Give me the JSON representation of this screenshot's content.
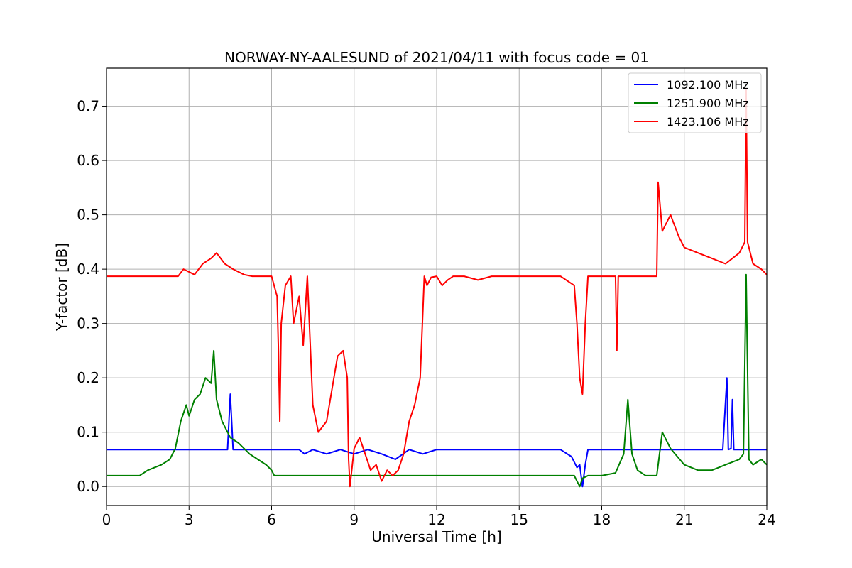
{
  "chart_data": {
    "type": "line",
    "title": "NORWAY-NY-AALESUND of 2021/04/11 with focus code = 01",
    "xlabel": "Universal Time [h]",
    "ylabel": "Y-factor [dB]",
    "xlim": [
      0,
      24
    ],
    "ylim": [
      -0.035,
      0.77
    ],
    "xticks": [
      "0",
      "3",
      "6",
      "9",
      "12",
      "15",
      "18",
      "21",
      "24"
    ],
    "yticks": [
      "0.0",
      "0.1",
      "0.2",
      "0.3",
      "0.4",
      "0.5",
      "0.6",
      "0.7"
    ],
    "grid": true,
    "legend_position": "top-right",
    "series": [
      {
        "name": "1092.100 MHz",
        "color": "#0000ff",
        "x": [
          0,
          4.4,
          4.5,
          4.6,
          7.0,
          7.2,
          7.5,
          8.0,
          8.5,
          9.0,
          9.5,
          10.0,
          10.5,
          11.0,
          11.5,
          12.0,
          14.0,
          16.5,
          16.9,
          17.0,
          17.1,
          17.2,
          17.3,
          17.4,
          17.5,
          18.0,
          22.4,
          22.55,
          22.6,
          22.7,
          22.75,
          22.8,
          24
        ],
        "y": [
          0.068,
          0.068,
          0.17,
          0.068,
          0.068,
          0.06,
          0.068,
          0.06,
          0.068,
          0.06,
          0.068,
          0.06,
          0.05,
          0.068,
          0.06,
          0.068,
          0.068,
          0.068,
          0.055,
          0.045,
          0.035,
          0.04,
          0.0,
          0.04,
          0.068,
          0.068,
          0.068,
          0.2,
          0.068,
          0.07,
          0.16,
          0.068,
          0.068
        ]
      },
      {
        "name": "1251.900 MHz",
        "color": "#008000",
        "x": [
          0,
          1.2,
          1.5,
          2.0,
          2.3,
          2.5,
          2.7,
          2.9,
          3.0,
          3.2,
          3.4,
          3.6,
          3.8,
          3.9,
          4.0,
          4.2,
          4.5,
          4.8,
          5.0,
          5.2,
          5.5,
          5.8,
          6.0,
          6.1,
          17.0,
          17.1,
          17.2,
          17.3,
          17.5,
          18.0,
          18.5,
          18.8,
          18.95,
          19.1,
          19.3,
          19.6,
          20.0,
          20.2,
          20.5,
          21.0,
          21.5,
          22.0,
          22.5,
          23.0,
          23.15,
          23.25,
          23.35,
          23.5,
          23.8,
          24.0
        ],
        "y": [
          0.02,
          0.02,
          0.03,
          0.04,
          0.05,
          0.07,
          0.12,
          0.15,
          0.13,
          0.16,
          0.17,
          0.2,
          0.19,
          0.25,
          0.16,
          0.12,
          0.09,
          0.08,
          0.07,
          0.06,
          0.05,
          0.04,
          0.03,
          0.02,
          0.02,
          0.01,
          0.0,
          0.015,
          0.02,
          0.02,
          0.025,
          0.06,
          0.16,
          0.06,
          0.03,
          0.02,
          0.02,
          0.1,
          0.07,
          0.04,
          0.03,
          0.03,
          0.04,
          0.05,
          0.06,
          0.39,
          0.05,
          0.04,
          0.05,
          0.04
        ]
      },
      {
        "name": "1423.106 MHz",
        "color": "#ff0000",
        "x": [
          0,
          2.6,
          2.8,
          3.2,
          3.5,
          3.8,
          4.0,
          4.3,
          4.6,
          5.0,
          5.3,
          5.5,
          6.0,
          6.2,
          6.25,
          6.3,
          6.35,
          6.5,
          6.7,
          6.8,
          7.0,
          7.15,
          7.3,
          7.5,
          7.7,
          8.0,
          8.2,
          8.4,
          8.6,
          8.75,
          8.8,
          8.85,
          9.0,
          9.2,
          9.4,
          9.6,
          9.8,
          10.0,
          10.2,
          10.4,
          10.6,
          10.8,
          11.0,
          11.2,
          11.4,
          11.55,
          11.65,
          11.8,
          12.0,
          12.2,
          12.4,
          12.6,
          13.0,
          13.5,
          14.0,
          16.5,
          17.0,
          17.1,
          17.2,
          17.3,
          17.4,
          17.5,
          18.0,
          18.5,
          18.55,
          18.6,
          19.0,
          20.0,
          20.05,
          20.2,
          20.5,
          20.8,
          21.0,
          21.5,
          22.0,
          22.5,
          23.0,
          23.2,
          23.25,
          23.3,
          23.5,
          23.8,
          24.0
        ],
        "y": [
          0.387,
          0.387,
          0.4,
          0.39,
          0.41,
          0.42,
          0.43,
          0.41,
          0.4,
          0.39,
          0.387,
          0.387,
          0.387,
          0.35,
          0.25,
          0.12,
          0.3,
          0.37,
          0.387,
          0.3,
          0.35,
          0.26,
          0.387,
          0.15,
          0.1,
          0.12,
          0.18,
          0.24,
          0.25,
          0.2,
          0.05,
          0.0,
          0.07,
          0.09,
          0.06,
          0.03,
          0.04,
          0.01,
          0.03,
          0.02,
          0.03,
          0.06,
          0.12,
          0.15,
          0.2,
          0.387,
          0.37,
          0.385,
          0.387,
          0.37,
          0.38,
          0.387,
          0.387,
          0.38,
          0.387,
          0.387,
          0.37,
          0.3,
          0.2,
          0.17,
          0.3,
          0.387,
          0.387,
          0.387,
          0.25,
          0.387,
          0.387,
          0.387,
          0.56,
          0.47,
          0.5,
          0.46,
          0.44,
          0.43,
          0.42,
          0.41,
          0.43,
          0.45,
          0.73,
          0.45,
          0.41,
          0.4,
          0.39
        ]
      }
    ]
  }
}
